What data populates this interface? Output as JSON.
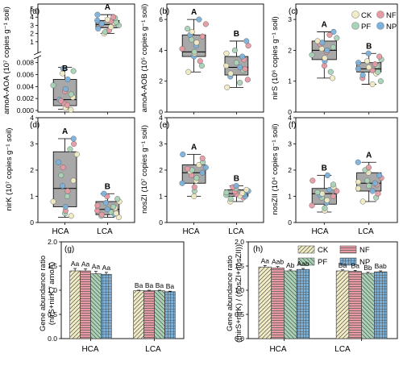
{
  "colors": {
    "CK": "#f2ecc4",
    "NF": "#e79aa3",
    "PF": "#a8d3b6",
    "NP": "#7bb2dc",
    "box": "#a8a8a8"
  },
  "legend_top": {
    "CK": "CK",
    "NF": "NF",
    "PF": "PF",
    "NP": "NP"
  },
  "legend_bottom": {
    "CK": "CK",
    "NF": "NF",
    "PF": "PF",
    "NP": "NP"
  },
  "categories": [
    "HCA",
    "LCA"
  ],
  "panels": [
    {
      "label": "(a)",
      "ylabel": "amoA-AOA (10⁷ copies g⁻¹ soil)",
      "type": "box-broken",
      "upper_ticks": [
        "0",
        "1",
        "2",
        "3",
        "4",
        "5"
      ],
      "lower_ticks": [
        "0.000",
        "0.002",
        "0.004",
        "0.006",
        "0.008"
      ],
      "letters": [
        "B",
        "A"
      ]
    },
    {
      "label": "(b)",
      "ylabel": "amoA-AOB (10⁵ copies g⁻¹ soil)",
      "type": "box",
      "ylim": [
        0,
        7
      ],
      "ticks": [
        "0",
        "2",
        "4",
        "6"
      ],
      "letters": [
        "A",
        "B"
      ]
    },
    {
      "label": "(c)",
      "ylabel": "nirS (10⁶ copies g⁻¹ soil)",
      "type": "box",
      "ylim": [
        0,
        3.5
      ],
      "ticks": [
        "0",
        "1",
        "2",
        "3"
      ],
      "letters": [
        "A",
        "B"
      ]
    },
    {
      "label": "(d)",
      "ylabel": "nirK (10⁷ copies g⁻¹ soil)",
      "type": "box",
      "ylim": [
        0,
        4
      ],
      "ticks": [
        "0",
        "1",
        "2",
        "3",
        "4"
      ],
      "letters": [
        "A",
        "B"
      ]
    },
    {
      "label": "(e)",
      "ylabel": "nosZI (10⁷ copies g⁻¹ soil)",
      "type": "box",
      "ylim": [
        0,
        4
      ],
      "ticks": [
        "0",
        "1",
        "2",
        "3",
        "4"
      ],
      "letters": [
        "A",
        "B"
      ]
    },
    {
      "label": "(f)",
      "ylabel": "nosZII (10⁴ copies g⁻¹ soil)",
      "type": "box",
      "ylim": [
        0,
        4
      ],
      "ticks": [
        "0",
        "1",
        "2",
        "3",
        "4"
      ],
      "letters": [
        "B",
        "A"
      ]
    },
    {
      "label": "(g)",
      "ylabel": [
        "Gene abundance ratio",
        "(nirS+nirK / amoA)"
      ],
      "type": "bar",
      "ylim": [
        0,
        2.0
      ],
      "ticks": [
        "0.0",
        "0.5",
        "1.0",
        "1.5",
        "2.0"
      ],
      "bar_letters": [
        [
          "Aa",
          "Aa",
          "Aa",
          "Aa"
        ],
        [
          "Ba",
          "Ba",
          "Ba",
          "Ba"
        ]
      ]
    },
    {
      "label": "(h)",
      "ylabel": [
        "Gene abundance ratio",
        "((nirS+nirK) / (nosZI+nosZII))"
      ],
      "type": "bar",
      "ylim": [
        0,
        2.0
      ],
      "ticks": [
        "0.0",
        "0.5",
        "1.0",
        "1.5",
        "2.0"
      ],
      "bar_letters": [
        [
          "Aa",
          "Aab",
          "Ab",
          "Aab"
        ],
        [
          "Ba",
          "Ba",
          "Bb",
          "Bab"
        ]
      ]
    }
  ],
  "chart_data": [
    {
      "type": "box",
      "title": "(a)",
      "ylabel": "amoA-AOA (10^7 copies g-1 soil)",
      "categories": [
        "HCA",
        "LCA"
      ],
      "boxes": [
        {
          "min": 0.0002,
          "q1": 0.0008,
          "median": 0.0018,
          "q3": 0.0052,
          "max": 0.0072
        },
        {
          "min": 2.0,
          "q1": 2.7,
          "median": 3.1,
          "q3": 3.6,
          "max": 4.3
        }
      ],
      "points": [
        [
          0.0001,
          0.0006,
          0.0012,
          0.0018,
          0.0022,
          0.0027,
          0.0032,
          0.0036,
          0.0004,
          0.0042,
          0.0009,
          0.0052,
          0.0062,
          0.0066,
          0.0016,
          0.007
        ],
        [
          2.0,
          2.2,
          2.4,
          2.6,
          2.8,
          3.0,
          3.1,
          3.2,
          3.3,
          3.4,
          3.5,
          3.6,
          3.7,
          3.9,
          4.0,
          4.3
        ]
      ],
      "letters": [
        "B",
        "A"
      ]
    },
    {
      "type": "box",
      "title": "(b)",
      "ylabel": "amoA-AOB (10^5 copies g-1 soil)",
      "categories": [
        "HCA",
        "LCA"
      ],
      "ylim": [
        0,
        7
      ],
      "boxes": [
        {
          "min": 2.6,
          "q1": 3.6,
          "median": 3.9,
          "q3": 5.0,
          "max": 6.0
        },
        {
          "min": 1.6,
          "q1": 2.4,
          "median": 2.9,
          "q3": 3.6,
          "max": 4.6
        }
      ],
      "points": [
        [
          2.6,
          3.0,
          3.3,
          3.6,
          3.8,
          3.9,
          4.1,
          4.3,
          4.5,
          4.7,
          4.9,
          5.0,
          5.2,
          5.4,
          5.7,
          6.0
        ],
        [
          1.6,
          1.9,
          2.1,
          2.3,
          2.5,
          2.7,
          2.8,
          2.9,
          3.0,
          3.2,
          3.4,
          3.6,
          3.8,
          4.0,
          4.3,
          4.6
        ]
      ],
      "letters": [
        "A",
        "B"
      ]
    },
    {
      "type": "box",
      "title": "(c)",
      "ylabel": "nirS (10^6 copies g-1 soil)",
      "categories": [
        "HCA",
        "LCA"
      ],
      "ylim": [
        0,
        3.5
      ],
      "boxes": [
        {
          "min": 1.1,
          "q1": 1.7,
          "median": 2.0,
          "q3": 2.3,
          "max": 2.6
        },
        {
          "min": 0.9,
          "q1": 1.3,
          "median": 1.4,
          "q3": 1.6,
          "max": 1.9
        }
      ],
      "points": [
        [
          1.1,
          1.3,
          1.5,
          1.65,
          1.75,
          1.85,
          1.95,
          2.0,
          2.05,
          2.1,
          2.2,
          2.25,
          2.3,
          2.4,
          2.5,
          2.6
        ],
        [
          0.9,
          1.0,
          1.1,
          1.2,
          1.25,
          1.3,
          1.35,
          1.4,
          1.45,
          1.5,
          1.55,
          1.6,
          1.65,
          1.7,
          1.8,
          1.9
        ]
      ],
      "letters": [
        "A",
        "B"
      ]
    },
    {
      "type": "box",
      "title": "(d)",
      "ylabel": "nirK (10^7 copies g-1 soil)",
      "categories": [
        "HCA",
        "LCA"
      ],
      "ylim": [
        0,
        4
      ],
      "boxes": [
        {
          "min": 0.2,
          "q1": 0.6,
          "median": 1.3,
          "q3": 2.7,
          "max": 3.2
        },
        {
          "min": 0.2,
          "q1": 0.3,
          "median": 0.5,
          "q3": 0.8,
          "max": 1.1
        }
      ],
      "points": [
        [
          0.25,
          0.35,
          0.45,
          0.6,
          0.8,
          1.0,
          1.2,
          1.4,
          1.6,
          1.8,
          2.1,
          2.3,
          2.6,
          2.8,
          3.0,
          3.2
        ],
        [
          0.2,
          0.25,
          0.3,
          0.32,
          0.35,
          0.4,
          0.45,
          0.5,
          0.55,
          0.6,
          0.65,
          0.75,
          0.8,
          0.9,
          1.0,
          1.1
        ]
      ],
      "letters": [
        "A",
        "B"
      ]
    },
    {
      "type": "box",
      "title": "(e)",
      "ylabel": "nosZI (10^7 copies g-1 soil)",
      "categories": [
        "HCA",
        "LCA"
      ],
      "ylim": [
        0,
        4
      ],
      "boxes": [
        {
          "min": 1.0,
          "q1": 1.5,
          "median": 1.9,
          "q3": 2.2,
          "max": 2.6
        },
        {
          "min": 0.8,
          "q1": 1.0,
          "median": 1.1,
          "q3": 1.25,
          "max": 1.4
        }
      ],
      "points": [
        [
          1.0,
          1.2,
          1.35,
          1.5,
          1.6,
          1.7,
          1.8,
          1.9,
          1.95,
          2.0,
          2.05,
          2.1,
          2.2,
          2.3,
          2.45,
          2.6
        ],
        [
          0.8,
          0.9,
          0.95,
          1.0,
          1.02,
          1.05,
          1.08,
          1.1,
          1.12,
          1.15,
          1.18,
          1.2,
          1.25,
          1.3,
          1.35,
          1.4
        ]
      ],
      "letters": [
        "A",
        "B"
      ]
    },
    {
      "type": "box",
      "title": "(f)",
      "ylabel": "nosZII (10^4 copies g-1 soil)",
      "categories": [
        "HCA",
        "LCA"
      ],
      "ylim": [
        0,
        4
      ],
      "boxes": [
        {
          "min": 0.4,
          "q1": 0.7,
          "median": 1.1,
          "q3": 1.3,
          "max": 1.8
        },
        {
          "min": 0.8,
          "q1": 1.2,
          "median": 1.5,
          "q3": 1.9,
          "max": 2.3
        }
      ],
      "points": [
        [
          0.45,
          0.55,
          0.65,
          0.75,
          0.85,
          0.95,
          1.0,
          1.05,
          1.1,
          1.15,
          1.2,
          1.25,
          1.35,
          1.45,
          1.6,
          1.8
        ],
        [
          0.8,
          0.95,
          1.1,
          1.2,
          1.3,
          1.4,
          1.45,
          1.5,
          1.55,
          1.6,
          1.7,
          1.8,
          1.9,
          2.0,
          2.1,
          2.3
        ]
      ],
      "letters": [
        "B",
        "A"
      ]
    },
    {
      "type": "bar",
      "title": "(g)",
      "ylabel": "Gene abundance ratio (nirS+nirK / amoA)",
      "categories": [
        "HCA",
        "LCA"
      ],
      "ylim": [
        0,
        2.0
      ],
      "series": [
        {
          "name": "CK",
          "values": [
            1.4,
            0.99
          ],
          "errors": [
            0.05,
            0.01
          ]
        },
        {
          "name": "NF",
          "values": [
            1.4,
            0.99
          ],
          "errors": [
            0.04,
            0.01
          ]
        },
        {
          "name": "PF",
          "values": [
            1.34,
            0.99
          ],
          "errors": [
            0.05,
            0.01
          ]
        },
        {
          "name": "NP",
          "values": [
            1.33,
            0.97
          ],
          "errors": [
            0.04,
            0.01
          ]
        }
      ],
      "letters": [
        [
          "Aa",
          "Aa",
          "Aa",
          "Aa"
        ],
        [
          "Ba",
          "Ba",
          "Ba",
          "Ba"
        ]
      ]
    },
    {
      "type": "bar",
      "title": "(h)",
      "ylabel": "Gene abundance ratio ((nirS+nirK) / (nosZI+nosZII))",
      "categories": [
        "HCA",
        "LCA"
      ],
      "ylim": [
        0,
        2.0
      ],
      "series": [
        {
          "name": "CK",
          "values": [
            1.48,
            1.4
          ],
          "errors": [
            0.03,
            0.02
          ]
        },
        {
          "name": "NF",
          "values": [
            1.46,
            1.39
          ],
          "errors": [
            0.03,
            0.02
          ]
        },
        {
          "name": "PF",
          "values": [
            1.4,
            1.35
          ],
          "errors": [
            0.02,
            0.02
          ]
        },
        {
          "name": "NP",
          "values": [
            1.43,
            1.38
          ],
          "errors": [
            0.02,
            0.02
          ]
        }
      ],
      "letters": [
        [
          "Aa",
          "Aab",
          "Ab",
          "Aab"
        ],
        [
          "Ba",
          "Ba",
          "Bb",
          "Bab"
        ]
      ]
    }
  ]
}
